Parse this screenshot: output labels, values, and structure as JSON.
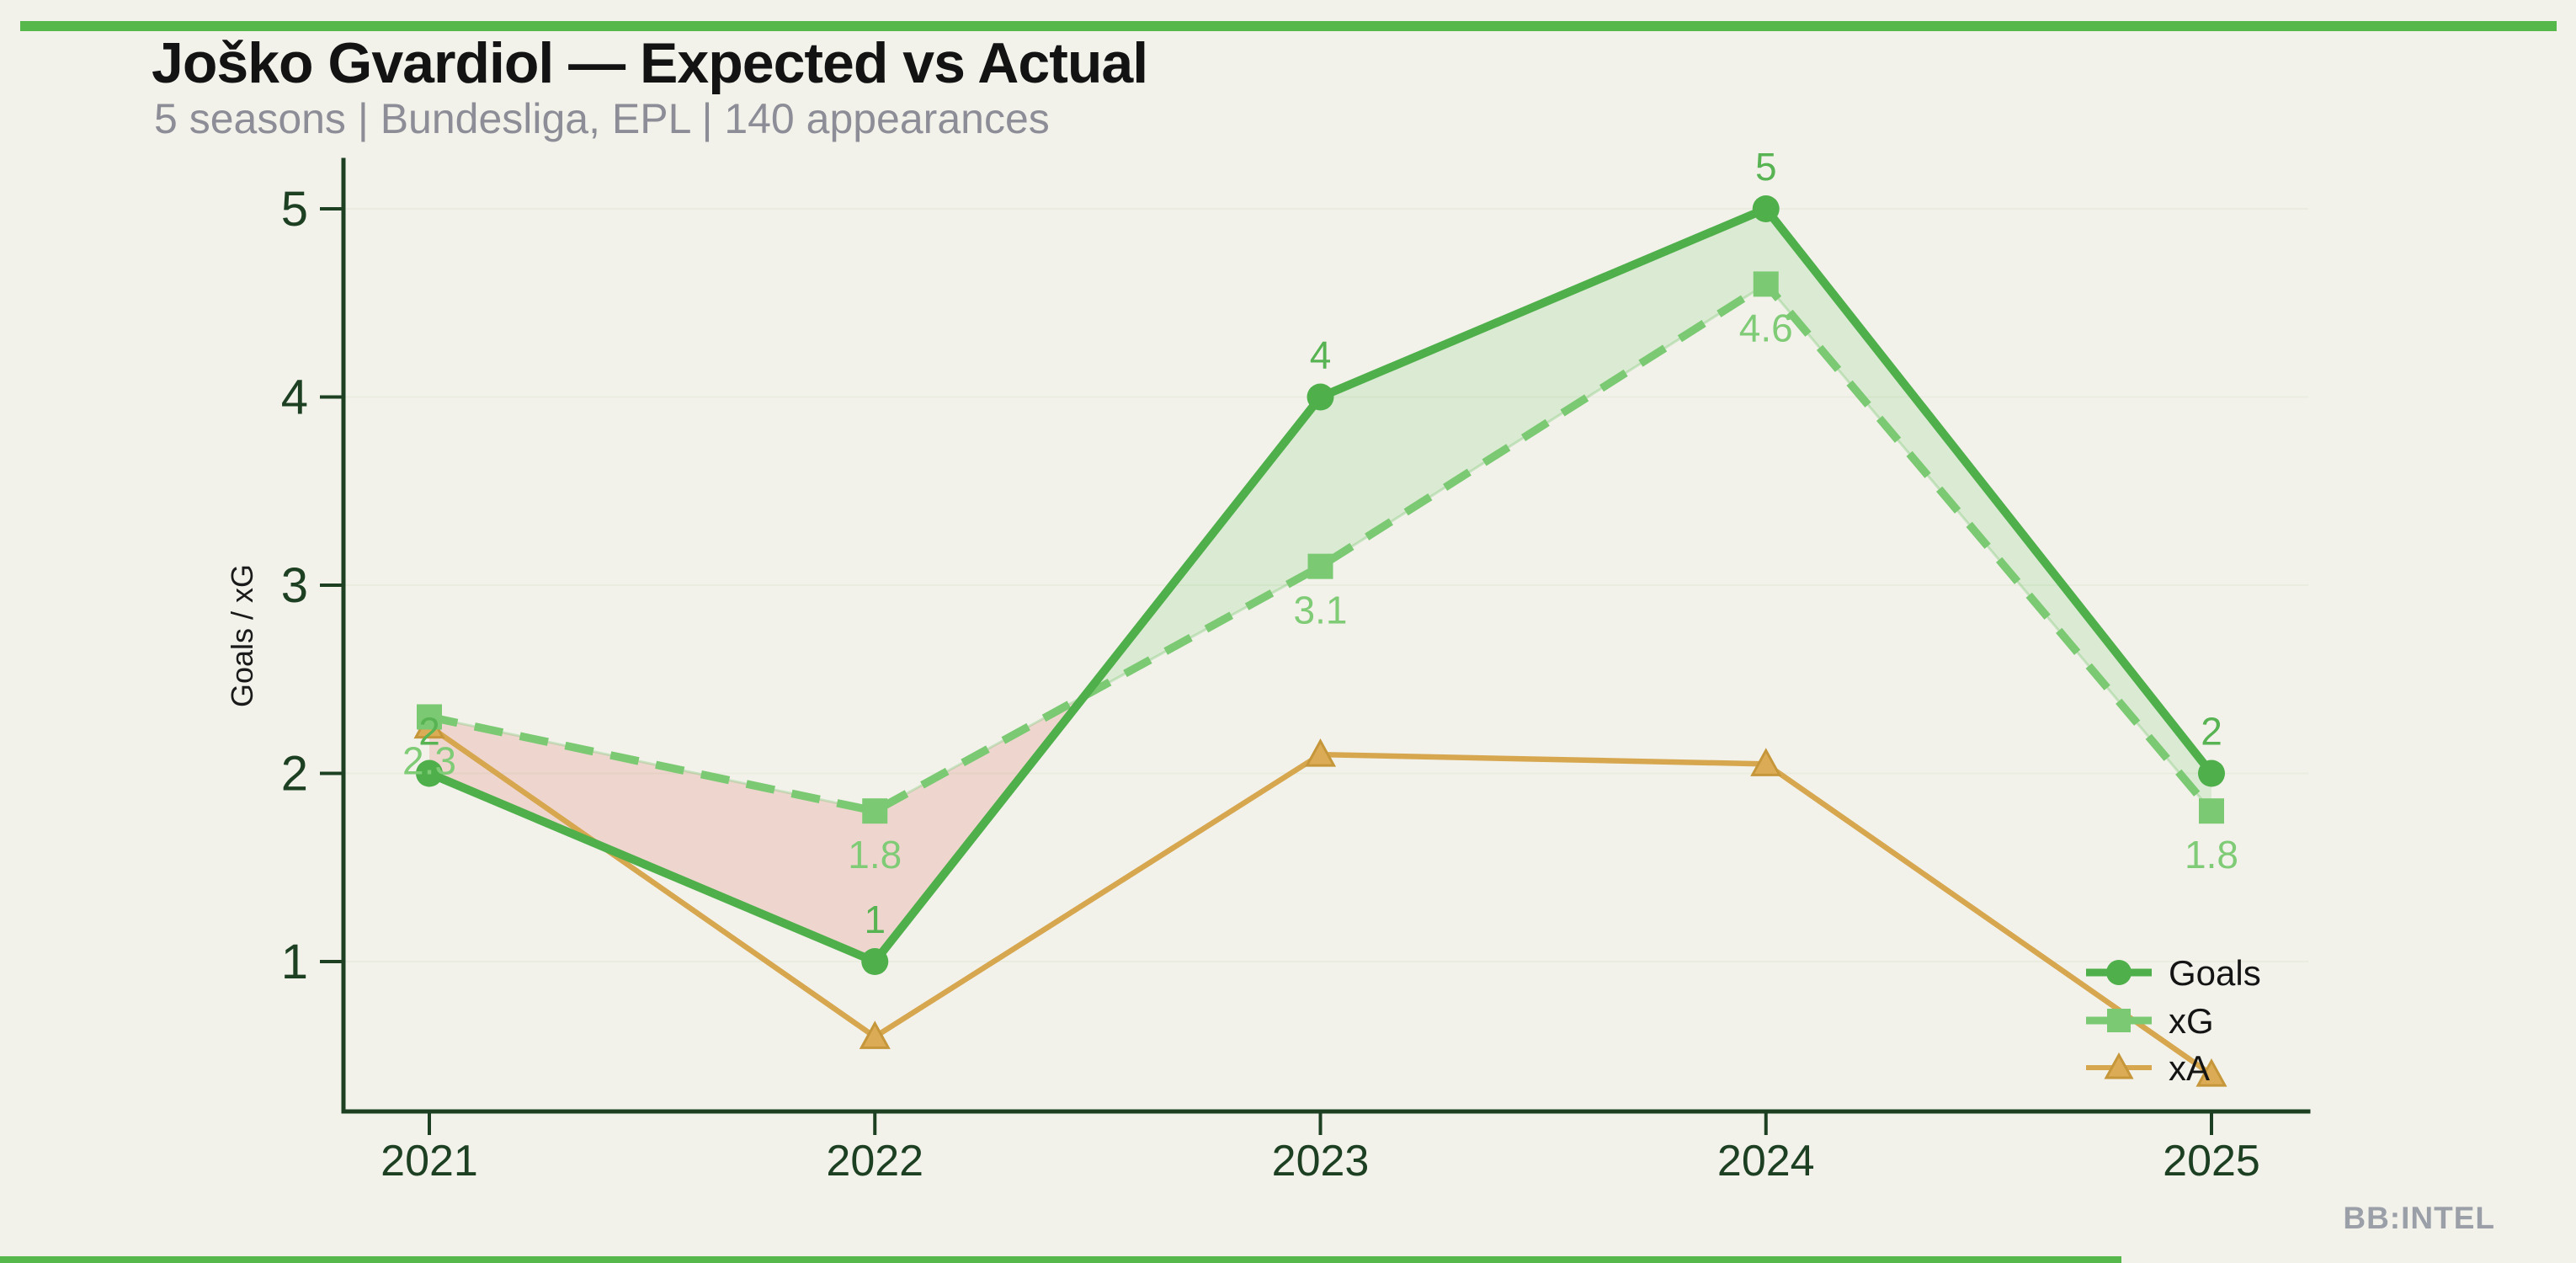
{
  "page": {
    "background": "#f2f2eb",
    "accent_color": "#56b84b",
    "watermark": "BB:INTEL"
  },
  "header": {
    "title": "Joško Gvardiol — Expected vs Actual",
    "subtitle": "5 seasons | Bundesliga, EPL | 140 appearances"
  },
  "chart_data": {
    "type": "line",
    "title": "Joško Gvardiol — Expected vs Actual",
    "subtitle": "5 seasons | Bundesliga, EPL | 140 appearances",
    "x": [
      "2021",
      "2022",
      "2023",
      "2024",
      "2025"
    ],
    "xlabel": "",
    "ylabel": "Goals / xG",
    "yticks": [
      1,
      2,
      3,
      4,
      5
    ],
    "ylim": [
      0.2,
      5.26
    ],
    "grid": "horizontal-faint",
    "grid_color": "#e9ecdf",
    "axis_color": "#1d4023",
    "text_color": "#1a1a1a",
    "series": [
      {
        "name": "Goals",
        "marker": "circle",
        "line": "solid",
        "color": "#4fb04b",
        "label_color": "#58b453",
        "values": [
          2,
          1,
          4,
          5,
          2
        ],
        "point_labels": [
          "2",
          "1",
          "4",
          "5",
          "2"
        ]
      },
      {
        "name": "xG",
        "marker": "square",
        "line": "dashed",
        "color": "#7bc972",
        "label_color": "#7fcb76",
        "values": [
          2.3,
          1.8,
          3.1,
          4.6,
          1.8
        ],
        "point_labels": [
          "2.3",
          "1.8",
          "3.1",
          "4.6",
          "1.8"
        ]
      },
      {
        "name": "xA",
        "marker": "triangle",
        "line": "solid",
        "color": "#d7a750",
        "marker_fill": "#dcab56",
        "marker_edge": "#c6973a",
        "values": [
          2.25,
          0.6,
          2.1,
          2.05,
          0.4
        ],
        "point_labels": []
      }
    ],
    "fill_between": {
      "upper": "Goals",
      "lower": "xG",
      "positive_color": "rgba(100,190,90,0.16)",
      "negative_color": "rgba(220,70,60,0.16)"
    },
    "legend": {
      "position": "lower-right",
      "entries": [
        "Goals",
        "xG",
        "xA"
      ]
    }
  }
}
